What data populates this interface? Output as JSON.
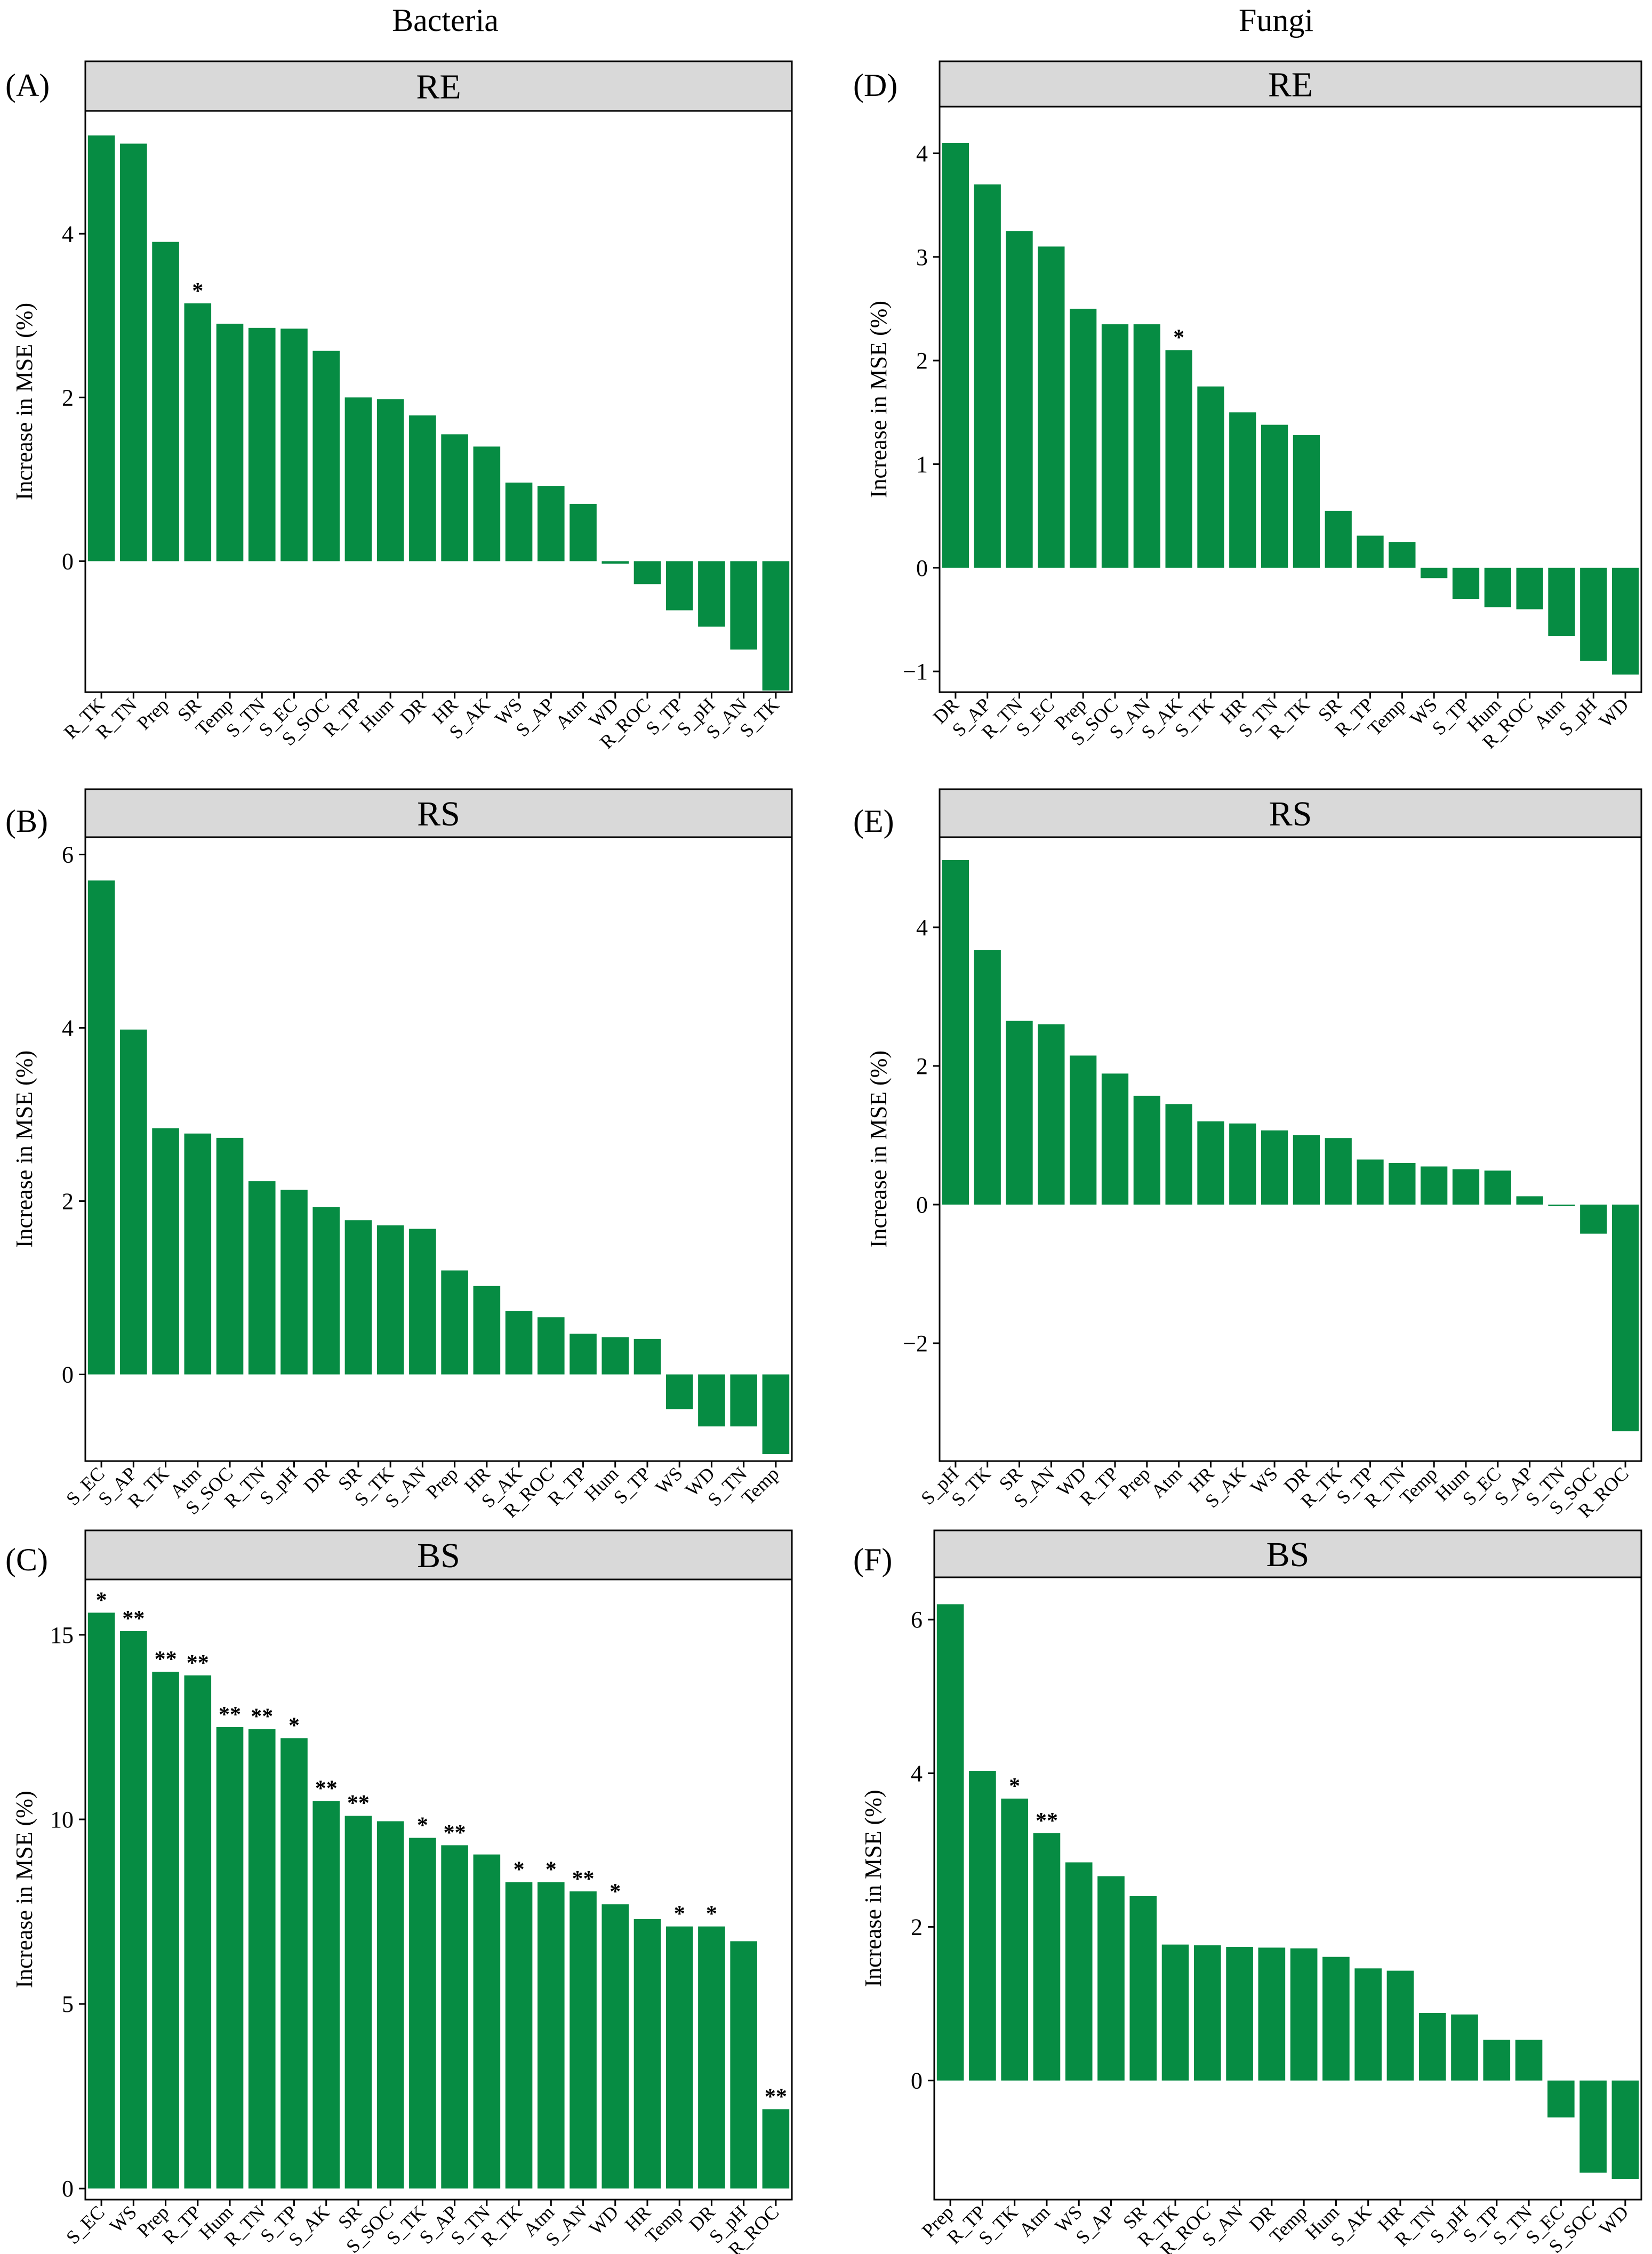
{
  "figure": {
    "column_titles": [
      "Bacteria",
      "Fungi"
    ],
    "colors": {
      "bar": "#068c43",
      "strip": "#d9d9d9",
      "axis": "#000000"
    }
  },
  "chart_data": [
    {
      "id": "A",
      "type": "bar",
      "panel_label": "(A)",
      "title": "RE",
      "column": "Bacteria",
      "ylabel": "Increase in MSE (%)",
      "ylim": [
        -1.6,
        5.5
      ],
      "yticks": [
        0,
        2,
        4
      ],
      "categories": [
        "R_TK",
        "R_TN",
        "Prep",
        "SR",
        "Temp",
        "S_TN",
        "S_EC",
        "S_SOC",
        "R_TP",
        "Hum",
        "DR",
        "HR",
        "S_AK",
        "WS",
        "S_AP",
        "Atm",
        "WD",
        "R_ROC",
        "S_TP",
        "S_pH",
        "S_AN",
        "S_TK"
      ],
      "values": [
        5.2,
        5.1,
        3.9,
        3.15,
        2.9,
        2.85,
        2.84,
        2.57,
        2.0,
        1.98,
        1.78,
        1.55,
        1.4,
        0.96,
        0.92,
        0.7,
        -0.03,
        -0.28,
        -0.6,
        -0.8,
        -1.08,
        -1.58
      ],
      "significance": [
        "",
        "",
        "",
        "*",
        "",
        "",
        "",
        "",
        "",
        "",
        "",
        "",
        "",
        "",
        "",
        "",
        "",
        "",
        "",
        "",
        "",
        ""
      ]
    },
    {
      "id": "B",
      "type": "bar",
      "panel_label": "(B)",
      "title": "RS",
      "column": "Bacteria",
      "ylabel": "Increase in MSE (%)",
      "ylim": [
        -1.0,
        6.2
      ],
      "yticks": [
        0,
        2,
        4,
        6
      ],
      "categories": [
        "S_EC",
        "S_AP",
        "R_TK",
        "Atm",
        "S_SOC",
        "R_TN",
        "S_pH",
        "DR",
        "SR",
        "S_TK",
        "S_AN",
        "Prep",
        "HR",
        "S_AK",
        "R_ROC",
        "R_TP",
        "Hum",
        "S_TP",
        "WS",
        "WD",
        "S_TN",
        "Temp"
      ],
      "values": [
        5.7,
        3.98,
        2.84,
        2.78,
        2.73,
        2.23,
        2.13,
        1.93,
        1.78,
        1.72,
        1.68,
        1.2,
        1.02,
        0.73,
        0.66,
        0.47,
        0.43,
        0.41,
        -0.4,
        -0.6,
        -0.6,
        -0.92
      ],
      "significance": [
        "",
        "",
        "",
        "",
        "",
        "",
        "",
        "",
        "",
        "",
        "",
        "",
        "",
        "",
        "",
        "",
        "",
        "",
        "",
        "",
        "",
        ""
      ]
    },
    {
      "id": "C",
      "type": "bar",
      "panel_label": "(C)",
      "title": "BS",
      "column": "Bacteria",
      "ylabel": "Increase in MSE (%)",
      "ylim": [
        -0.3,
        16.5
      ],
      "yticks": [
        0,
        5,
        10,
        15
      ],
      "categories": [
        "S_EC",
        "WS",
        "Prep",
        "R_TP",
        "Hum",
        "R_TN",
        "S_TP",
        "S_AK",
        "SR",
        "S_SOC",
        "S_TK",
        "S_AP",
        "S_TN",
        "R_TK",
        "Atm",
        "S_AN",
        "WD",
        "HR",
        "Temp",
        "DR",
        "S_pH",
        "R_ROC"
      ],
      "values": [
        15.6,
        15.1,
        14.0,
        13.9,
        12.5,
        12.45,
        12.2,
        10.5,
        10.1,
        9.95,
        9.5,
        9.3,
        9.05,
        8.3,
        8.3,
        8.05,
        7.7,
        7.3,
        7.1,
        7.1,
        6.7,
        2.15
      ],
      "significance": [
        "*",
        "**",
        "**",
        "**",
        "**",
        "**",
        "*",
        "**",
        "**",
        "",
        "*",
        "**",
        "",
        "*",
        "*",
        "**",
        "*",
        "",
        "*",
        "*",
        "",
        "**"
      ]
    },
    {
      "id": "D",
      "type": "bar",
      "panel_label": "(D)",
      "title": "RE",
      "column": "Fungi",
      "ylabel": "Increase in MSE (%)",
      "ylim": [
        -1.2,
        4.45
      ],
      "yticks": [
        -1,
        0,
        1,
        2,
        3,
        4
      ],
      "categories": [
        "DR",
        "S_AP",
        "R_TN",
        "S_EC",
        "Prep",
        "S_SOC",
        "S_AN",
        "S_AK",
        "S_TK",
        "HR",
        "S_TN",
        "R_TK",
        "SR",
        "R_TP",
        "Temp",
        "WS",
        "S_TP",
        "Hum",
        "R_ROC",
        "Atm",
        "S_pH",
        "WD"
      ],
      "values": [
        4.1,
        3.7,
        3.25,
        3.1,
        2.5,
        2.35,
        2.35,
        2.1,
        1.75,
        1.5,
        1.38,
        1.28,
        0.55,
        0.31,
        0.25,
        -0.1,
        -0.3,
        -0.38,
        -0.4,
        -0.66,
        -0.9,
        -1.03
      ],
      "significance": [
        "",
        "",
        "",
        "",
        "",
        "",
        "",
        "*",
        "",
        "",
        "",
        "",
        "",
        "",
        "",
        "",
        "",
        "",
        "",
        "",
        "",
        ""
      ]
    },
    {
      "id": "E",
      "type": "bar",
      "panel_label": "(E)",
      "title": "RS",
      "column": "Fungi",
      "ylabel": "Increase in MSE (%)",
      "ylim": [
        -3.7,
        5.3
      ],
      "yticks": [
        -2,
        0,
        2,
        4
      ],
      "categories": [
        "S_pH",
        "S_TK",
        "SR",
        "S_AN",
        "WD",
        "R_TP",
        "Prep",
        "Atm",
        "HR",
        "S_AK",
        "WS",
        "DR",
        "R_TK",
        "S_TP",
        "R_TN",
        "Temp",
        "Hum",
        "S_EC",
        "S_AP",
        "S_TN",
        "S_SOC",
        "R_ROC"
      ],
      "values": [
        4.97,
        3.67,
        2.65,
        2.6,
        2.15,
        1.89,
        1.57,
        1.45,
        1.2,
        1.17,
        1.07,
        1.0,
        0.96,
        0.65,
        0.6,
        0.55,
        0.51,
        0.49,
        0.12,
        -0.02,
        -0.42,
        -3.27
      ],
      "significance": [
        "",
        "",
        "",
        "",
        "",
        "",
        "",
        "",
        "",
        "",
        "",
        "",
        "",
        "",
        "",
        "",
        "",
        "",
        "",
        "",
        "",
        ""
      ]
    },
    {
      "id": "F",
      "type": "bar",
      "panel_label": "(F)",
      "title": "BS",
      "column": "Fungi",
      "ylabel": "Increase in MSE (%)",
      "ylim": [
        -1.55,
        6.55
      ],
      "yticks": [
        0,
        2,
        4,
        6
      ],
      "categories": [
        "Prep",
        "R_TP",
        "S_TK",
        "Atm",
        "WS",
        "S_AP",
        "SR",
        "R_TK",
        "R_ROC",
        "S_AN",
        "DR",
        "Temp",
        "Hum",
        "S_AK",
        "HR",
        "R_TN",
        "S_pH",
        "S_TP",
        "S_TN",
        "S_EC",
        "S_SOC",
        "WD"
      ],
      "values": [
        6.2,
        4.03,
        3.67,
        3.22,
        2.84,
        2.66,
        2.4,
        1.77,
        1.76,
        1.74,
        1.73,
        1.72,
        1.61,
        1.46,
        1.43,
        0.88,
        0.86,
        0.53,
        0.53,
        -0.48,
        -1.2,
        -1.28
      ],
      "significance": [
        "",
        "",
        "*",
        "**",
        "",
        "",
        "",
        "",
        "",
        "",
        "",
        "",
        "",
        "",
        "",
        "",
        "",
        "",
        "",
        "",
        "",
        ""
      ]
    }
  ]
}
